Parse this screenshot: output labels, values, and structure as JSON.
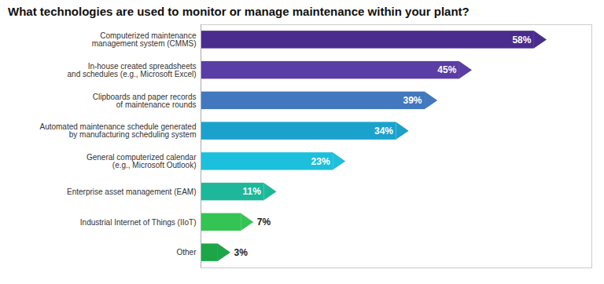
{
  "chart_data": {
    "type": "bar",
    "orientation": "horizontal",
    "title": "What technologies are used to monitor or manage maintenance within your plant?",
    "categories": [
      "Computerized maintenance\nmanagement system (CMMS)",
      "In-house created spreadsheets\nand schedules (e.g., Microsoft Excel)",
      "Clipboards and paper records\nof maintenance rounds",
      "Automated maintenance schedule generated\nby manufacturing scheduling system",
      "General computerized calendar\n(e.g., Microsoft Outlook)",
      "Enterprise asset management (EAM)",
      "Industrial Internet of Things (IIoT)",
      "Other"
    ],
    "values": [
      58,
      45,
      39,
      34,
      23,
      11,
      7,
      3
    ],
    "value_labels": [
      "58%",
      "45%",
      "39%",
      "34%",
      "23%",
      "11%",
      "7%",
      "3%"
    ],
    "colors": [
      "#4a2c8f",
      "#5a3da5",
      "#4278be",
      "#1ba2cc",
      "#1dc0dc",
      "#1db89a",
      "#34c454",
      "#1da648"
    ],
    "xlim": [
      0,
      68
    ],
    "data_labels": true,
    "tick_labels": "y"
  }
}
